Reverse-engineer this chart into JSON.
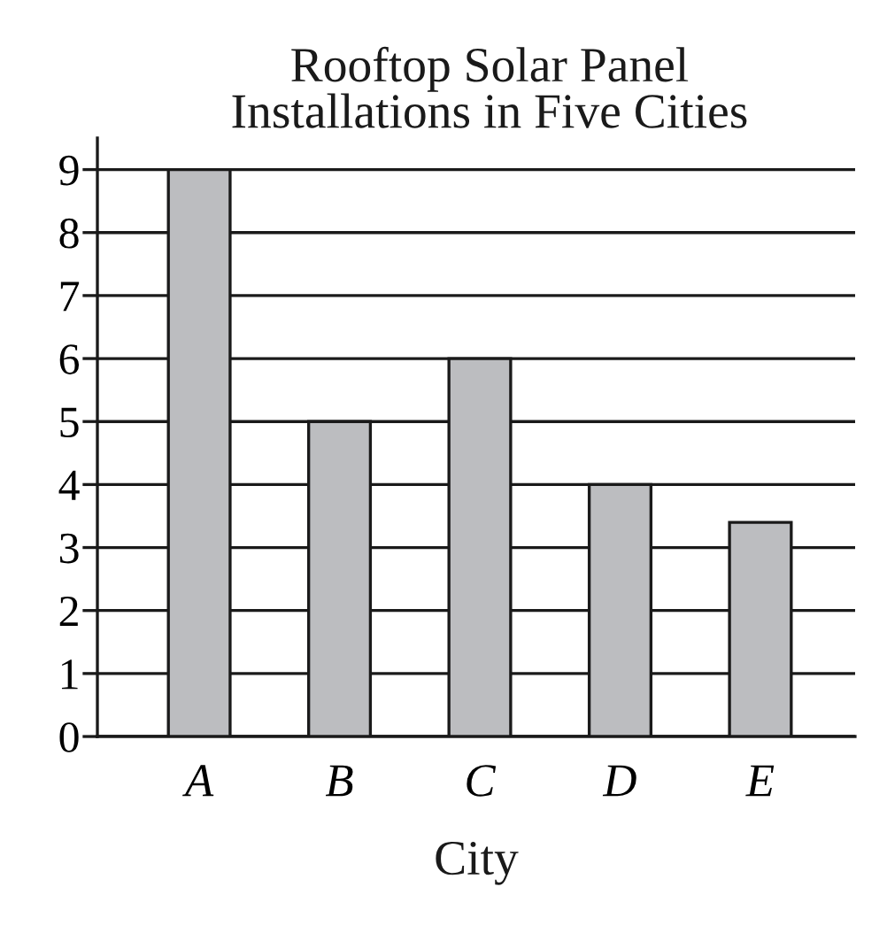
{
  "chart_data": {
    "type": "bar",
    "title": "Rooftop Solar Panel\nInstallations in Five Cities",
    "xlabel": "City",
    "categories": [
      "A",
      "B",
      "C",
      "D",
      "E"
    ],
    "values": [
      9,
      5,
      6,
      4,
      3.4
    ],
    "color": "#bcbdc0",
    "ylim": [
      0,
      9.5
    ],
    "yticks": [
      0,
      1,
      2,
      3,
      4,
      5,
      6,
      7,
      8,
      9
    ],
    "grid": "y",
    "legend": false
  }
}
